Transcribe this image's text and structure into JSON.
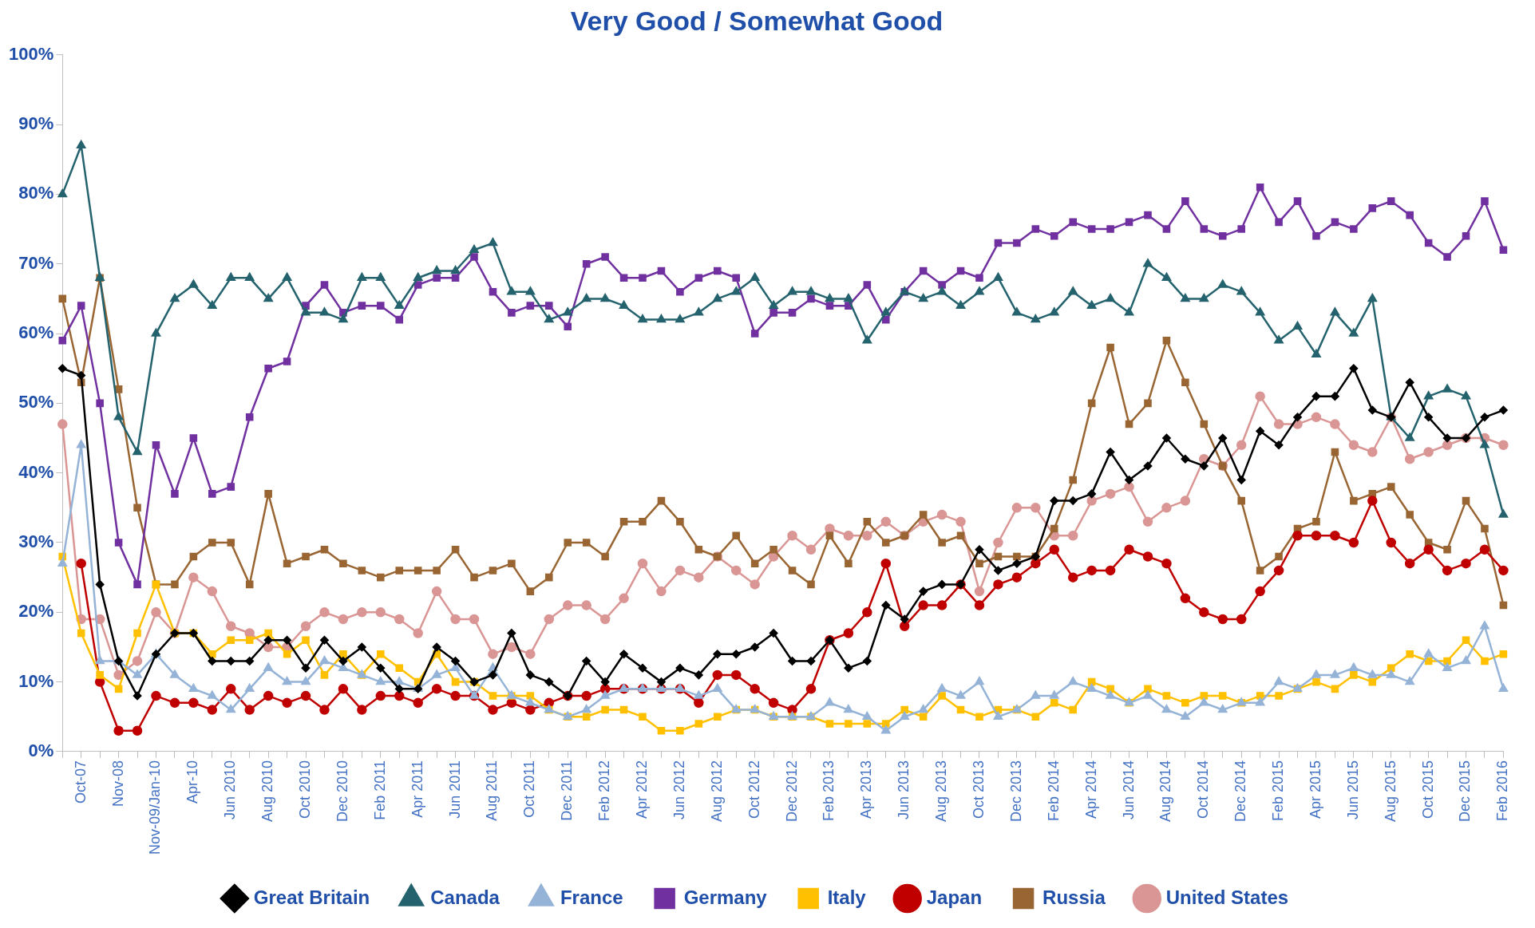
{
  "chart_data": {
    "type": "line",
    "title": "Very Good / Somewhat Good",
    "categories": [
      null,
      "Oct-07",
      null,
      "Nov-08",
      null,
      "Nov-09/Jan-10",
      null,
      "Apr-10",
      null,
      "Jun 2010",
      null,
      "Aug 2010",
      null,
      "Oct 2010",
      null,
      "Dec 2010",
      null,
      "Feb 2011",
      null,
      "Apr 2011",
      null,
      "Jun 2011",
      null,
      "Aug 2011",
      null,
      "Oct 2011",
      null,
      "Dec 2011",
      null,
      "Feb 2012",
      null,
      "Apr 2012",
      null,
      "Jun 2012",
      null,
      "Aug 2012",
      null,
      "Oct 2012",
      null,
      "Dec 2012",
      null,
      "Feb 2013",
      null,
      "Apr 2013",
      null,
      "Jun 2013",
      null,
      "Aug 2013",
      null,
      "Oct 2013",
      null,
      "Dec 2013",
      null,
      "Feb 2014",
      null,
      "Apr 2014",
      null,
      "Jun 2014",
      null,
      "Aug 2014",
      null,
      "Oct 2014",
      null,
      "Dec 2014",
      null,
      "Feb 2015",
      null,
      "Apr 2015",
      null,
      "Jun 2015",
      null,
      "Aug 2015",
      null,
      "Oct 2015",
      null,
      "Dec 2015",
      null,
      "Feb 2016"
    ],
    "series": [
      {
        "name": "Great Britain",
        "color": "#000000",
        "marker": "diamond",
        "values": [
          55,
          54,
          24,
          13,
          8,
          14,
          17,
          17,
          13,
          13,
          13,
          16,
          16,
          12,
          16,
          13,
          15,
          12,
          9,
          9,
          15,
          13,
          10,
          11,
          17,
          11,
          10,
          8,
          13,
          10,
          14,
          12,
          10,
          12,
          11,
          14,
          14,
          15,
          17,
          13,
          13,
          16,
          12,
          13,
          21,
          19,
          23,
          24,
          24,
          29,
          26,
          27,
          28,
          36,
          36,
          37,
          43,
          39,
          41,
          45,
          42,
          41,
          45,
          39,
          46,
          44,
          48,
          51,
          51,
          55,
          49,
          48,
          53,
          48,
          45,
          45,
          48,
          49
        ]
      },
      {
        "name": "Canada",
        "color": "#24636e",
        "marker": "triangle",
        "values": [
          80,
          87,
          68,
          48,
          43,
          60,
          65,
          67,
          64,
          68,
          68,
          65,
          68,
          63,
          63,
          62,
          68,
          68,
          64,
          68,
          69,
          69,
          72,
          73,
          66,
          66,
          62,
          63,
          65,
          65,
          64,
          62,
          62,
          62,
          63,
          65,
          66,
          68,
          64,
          66,
          66,
          65,
          65,
          59,
          63,
          66,
          65,
          66,
          64,
          66,
          68,
          63,
          62,
          63,
          66,
          64,
          65,
          63,
          70,
          68,
          65,
          65,
          67,
          66,
          63,
          59,
          61,
          57,
          63,
          60,
          65,
          48,
          45,
          51,
          52,
          51,
          44,
          34
        ]
      },
      {
        "name": "France",
        "color": "#95b3d7",
        "marker": "triangle",
        "values": [
          27,
          44,
          13,
          13,
          11,
          14,
          11,
          9,
          8,
          6,
          9,
          12,
          10,
          10,
          13,
          12,
          11,
          10,
          10,
          9,
          11,
          12,
          8,
          12,
          8,
          7,
          6,
          5,
          6,
          8,
          9,
          9,
          9,
          9,
          8,
          9,
          6,
          6,
          5,
          5,
          5,
          7,
          6,
          5,
          3,
          5,
          6,
          9,
          8,
          10,
          5,
          6,
          8,
          8,
          10,
          9,
          8,
          7,
          8,
          6,
          5,
          7,
          6,
          7,
          7,
          10,
          9,
          11,
          11,
          12,
          11,
          11,
          10,
          14,
          12,
          13,
          18,
          9
        ]
      },
      {
        "name": "Germany",
        "color": "#7030a0",
        "marker": "square",
        "values": [
          59,
          64,
          50,
          30,
          24,
          44,
          37,
          45,
          37,
          38,
          48,
          55,
          56,
          64,
          67,
          63,
          64,
          64,
          62,
          67,
          68,
          68,
          71,
          66,
          63,
          64,
          64,
          61,
          70,
          71,
          68,
          68,
          69,
          66,
          68,
          69,
          68,
          60,
          63,
          63,
          65,
          64,
          64,
          67,
          62,
          66,
          69,
          67,
          69,
          68,
          73,
          73,
          75,
          74,
          76,
          75,
          75,
          76,
          77,
          75,
          79,
          75,
          74,
          75,
          81,
          76,
          79,
          74,
          76,
          75,
          78,
          79,
          77,
          73,
          71,
          74,
          79,
          72
        ]
      },
      {
        "name": "Italy",
        "color": "#ffc000",
        "marker": "square",
        "values": [
          28,
          17,
          11,
          9,
          17,
          24,
          17,
          17,
          14,
          16,
          16,
          17,
          14,
          16,
          11,
          14,
          11,
          14,
          12,
          10,
          14,
          10,
          10,
          8,
          8,
          8,
          6,
          5,
          5,
          6,
          6,
          5,
          3,
          3,
          4,
          5,
          6,
          6,
          5,
          5,
          5,
          4,
          4,
          4,
          4,
          6,
          5,
          8,
          6,
          5,
          6,
          6,
          5,
          7,
          6,
          10,
          9,
          7,
          9,
          8,
          7,
          8,
          8,
          7,
          8,
          8,
          9,
          10,
          9,
          11,
          10,
          12,
          14,
          13,
          13,
          16,
          13,
          14
        ]
      },
      {
        "name": "Japan",
        "color": "#c00000",
        "marker": "circle",
        "values": [
          null,
          27,
          10,
          3,
          3,
          8,
          7,
          7,
          6,
          9,
          6,
          8,
          7,
          8,
          6,
          9,
          6,
          8,
          8,
          7,
          9,
          8,
          8,
          6,
          7,
          6,
          7,
          8,
          8,
          9,
          9,
          9,
          9,
          9,
          7,
          11,
          11,
          9,
          7,
          6,
          9,
          16,
          17,
          20,
          27,
          18,
          21,
          21,
          24,
          21,
          24,
          25,
          27,
          29,
          25,
          26,
          26,
          29,
          28,
          27,
          22,
          20,
          19,
          19,
          23,
          26,
          31,
          31,
          31,
          30,
          36,
          30,
          27,
          29,
          26,
          27,
          29,
          26
        ]
      },
      {
        "name": "Russia",
        "color": "#996633",
        "marker": "square",
        "values": [
          65,
          53,
          68,
          52,
          35,
          24,
          24,
          28,
          30,
          30,
          24,
          37,
          27,
          28,
          29,
          27,
          26,
          25,
          26,
          26,
          26,
          29,
          25,
          26,
          27,
          23,
          25,
          30,
          30,
          28,
          33,
          33,
          36,
          33,
          29,
          28,
          31,
          27,
          29,
          26,
          24,
          31,
          27,
          33,
          30,
          31,
          34,
          30,
          31,
          27,
          28,
          28,
          28,
          32,
          39,
          50,
          58,
          47,
          50,
          59,
          53,
          47,
          41,
          36,
          26,
          28,
          32,
          33,
          43,
          36,
          37,
          38,
          34,
          30,
          29,
          36,
          32,
          21
        ]
      },
      {
        "name": "United States",
        "color": "#d99694",
        "marker": "circle",
        "values": [
          47,
          19,
          19,
          11,
          13,
          20,
          17,
          25,
          23,
          18,
          17,
          15,
          15,
          18,
          20,
          19,
          20,
          20,
          19,
          17,
          23,
          19,
          19,
          14,
          15,
          14,
          19,
          21,
          21,
          19,
          22,
          27,
          23,
          26,
          25,
          28,
          26,
          24,
          28,
          31,
          29,
          32,
          31,
          31,
          33,
          31,
          33,
          34,
          33,
          23,
          30,
          35,
          35,
          31,
          31,
          36,
          37,
          38,
          33,
          35,
          36,
          42,
          41,
          44,
          51,
          47,
          47,
          48,
          47,
          44,
          43,
          48,
          42,
          43,
          44,
          45,
          45,
          44
        ]
      }
    ],
    "ylim": [
      0,
      100
    ],
    "yticks": [
      {
        "value": 0,
        "label": "0%"
      },
      {
        "value": 10,
        "label": "10%"
      },
      {
        "value": 20,
        "label": "20%"
      },
      {
        "value": 30,
        "label": "30%"
      },
      {
        "value": 40,
        "label": "40%"
      },
      {
        "value": 50,
        "label": "50%"
      },
      {
        "value": 60,
        "label": "60%"
      },
      {
        "value": 70,
        "label": "70%"
      },
      {
        "value": 80,
        "label": "80%"
      },
      {
        "value": 90,
        "label": "90%"
      },
      {
        "value": 100,
        "label": "100%"
      }
    ],
    "legend": "bottom"
  }
}
